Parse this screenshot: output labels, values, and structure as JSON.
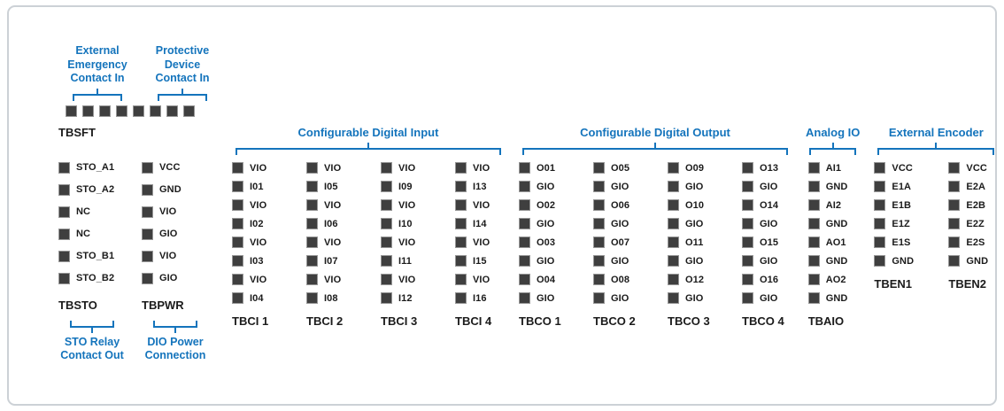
{
  "colors": {
    "accent_blue": "#1474bc",
    "pin_fill": "#3f3f3f",
    "pin_edge": "#969696",
    "text": "#1b1b1b"
  },
  "tbsft": {
    "name": "TBSFT",
    "pin_count": 8,
    "labels_above": [
      "External\nEmergency\nContact In",
      "Protective\nDevice\nContact In"
    ]
  },
  "left_blocks": [
    {
      "name": "TBSTO",
      "pins": [
        "STO_A1",
        "STO_A2",
        "NC",
        "NC",
        "STO_B1",
        "STO_B2"
      ],
      "label_below": "STO Relay\nContact Out"
    },
    {
      "name": "TBPWR",
      "pins": [
        "VCC",
        "GND",
        "VIO",
        "GIO",
        "VIO",
        "GIO"
      ],
      "label_below": "DIO Power\nConnection"
    }
  ],
  "sections": [
    {
      "title": "Configurable Digital Input",
      "blocks": [
        {
          "name": "TBCI 1",
          "pins": [
            "VIO",
            "I01",
            "VIO",
            "I02",
            "VIO",
            "I03",
            "VIO",
            "I04"
          ]
        },
        {
          "name": "TBCI 2",
          "pins": [
            "VIO",
            "I05",
            "VIO",
            "I06",
            "VIO",
            "I07",
            "VIO",
            "I08"
          ]
        },
        {
          "name": "TBCI 3",
          "pins": [
            "VIO",
            "I09",
            "VIO",
            "I10",
            "VIO",
            "I11",
            "VIO",
            "I12"
          ]
        },
        {
          "name": "TBCI 4",
          "pins": [
            "VIO",
            "I13",
            "VIO",
            "I14",
            "VIO",
            "I15",
            "VIO",
            "I16"
          ]
        }
      ]
    },
    {
      "title": "Configurable Digital Output",
      "blocks": [
        {
          "name": "TBCO 1",
          "pins": [
            "O01",
            "GIO",
            "O02",
            "GIO",
            "O03",
            "GIO",
            "O04",
            "GIO"
          ]
        },
        {
          "name": "TBCO 2",
          "pins": [
            "O05",
            "GIO",
            "O06",
            "GIO",
            "O07",
            "GIO",
            "O08",
            "GIO"
          ]
        },
        {
          "name": "TBCO 3",
          "pins": [
            "O09",
            "GIO",
            "O10",
            "GIO",
            "O11",
            "GIO",
            "O12",
            "GIO"
          ]
        },
        {
          "name": "TBCO 4",
          "pins": [
            "O13",
            "GIO",
            "O14",
            "GIO",
            "O15",
            "GIO",
            "O16",
            "GIO"
          ]
        }
      ]
    },
    {
      "title": "Analog IO",
      "blocks": [
        {
          "name": "TBAIO",
          "pins": [
            "AI1",
            "GND",
            "AI2",
            "GND",
            "AO1",
            "GND",
            "AO2",
            "GND"
          ]
        }
      ]
    },
    {
      "title": "External Encoder",
      "blocks": [
        {
          "name": "TBEN1",
          "pins": [
            "VCC",
            "E1A",
            "E1B",
            "E1Z",
            "E1S",
            "GND"
          ]
        },
        {
          "name": "TBEN2",
          "pins": [
            "VCC",
            "E2A",
            "E2B",
            "E2Z",
            "E2S",
            "GND"
          ]
        }
      ]
    }
  ]
}
